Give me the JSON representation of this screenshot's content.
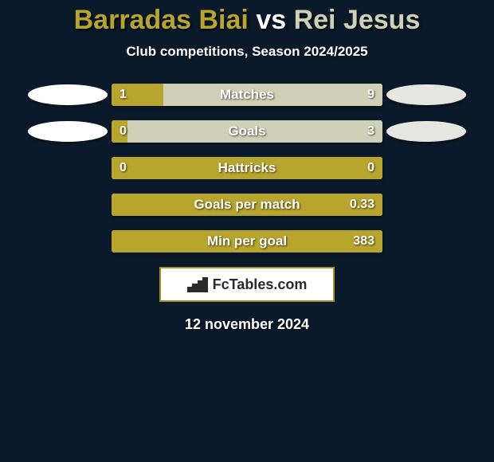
{
  "background_color": "#0b1a2a",
  "title": {
    "player1": "Barradas Biai",
    "vs": "vs",
    "player2": "Rei Jesus",
    "player1_color": "#b8a52e",
    "vs_color": "#ffffff",
    "player2_color": "#cfd1b6",
    "fontsize": 34
  },
  "subtitle": {
    "text": "Club competitions, Season 2024/2025",
    "fontsize": 17
  },
  "side_ovals": {
    "left_color": "#ffffff",
    "right_color": "#e5e6e0",
    "visible_rows": [
      0,
      1
    ]
  },
  "bar_colors": {
    "left": "#b8a52e",
    "right": "#cfd1b6"
  },
  "bars": [
    {
      "label": "Matches",
      "left_val": "1",
      "right_val": "9",
      "left_pct": 19,
      "right_pct": 81
    },
    {
      "label": "Goals",
      "left_val": "0",
      "right_val": "3",
      "left_pct": 6,
      "right_pct": 94
    },
    {
      "label": "Hattricks",
      "left_val": "0",
      "right_val": "0",
      "left_pct": 100,
      "right_pct": 0
    },
    {
      "label": "Goals per match",
      "left_val": "",
      "right_val": "0.33",
      "left_pct": 100,
      "right_pct": 0
    },
    {
      "label": "Min per goal",
      "left_val": "",
      "right_val": "383",
      "left_pct": 100,
      "right_pct": 0
    }
  ],
  "logo": {
    "text": "FcTables.com",
    "border_color": "#a09129"
  },
  "date": "12 november 2024"
}
